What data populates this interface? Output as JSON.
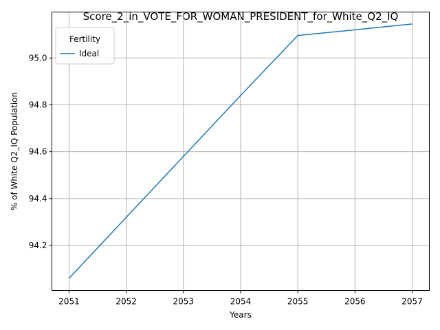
{
  "chart_data": {
    "type": "line",
    "title": "Score_2_in_VOTE_FOR_WOMAN_PRESIDENT_for_White_Q2_IQ",
    "xlabel": "Years",
    "ylabel": "% of White Q2_IQ Population",
    "x": [
      2051,
      2052,
      2053,
      2054,
      2055,
      2056,
      2057
    ],
    "xticks": [
      "2051",
      "2052",
      "2053",
      "2054",
      "2055",
      "2056",
      "2057"
    ],
    "yticks": [
      "94.2",
      "94.4",
      "94.6",
      "94.8",
      "95.0"
    ],
    "ytick_values": [
      94.2,
      94.4,
      94.6,
      94.8,
      95.0
    ],
    "xlim": [
      2050.7,
      2057.3
    ],
    "ylim": [
      94.008,
      95.196
    ],
    "grid": true,
    "legend": {
      "title": "Fertility",
      "position": "top-left"
    },
    "series": [
      {
        "name": "Ideal",
        "color": "#1f77b4",
        "values": [
          94.06,
          94.32,
          94.58,
          94.84,
          95.096,
          95.12,
          95.145
        ]
      }
    ]
  }
}
